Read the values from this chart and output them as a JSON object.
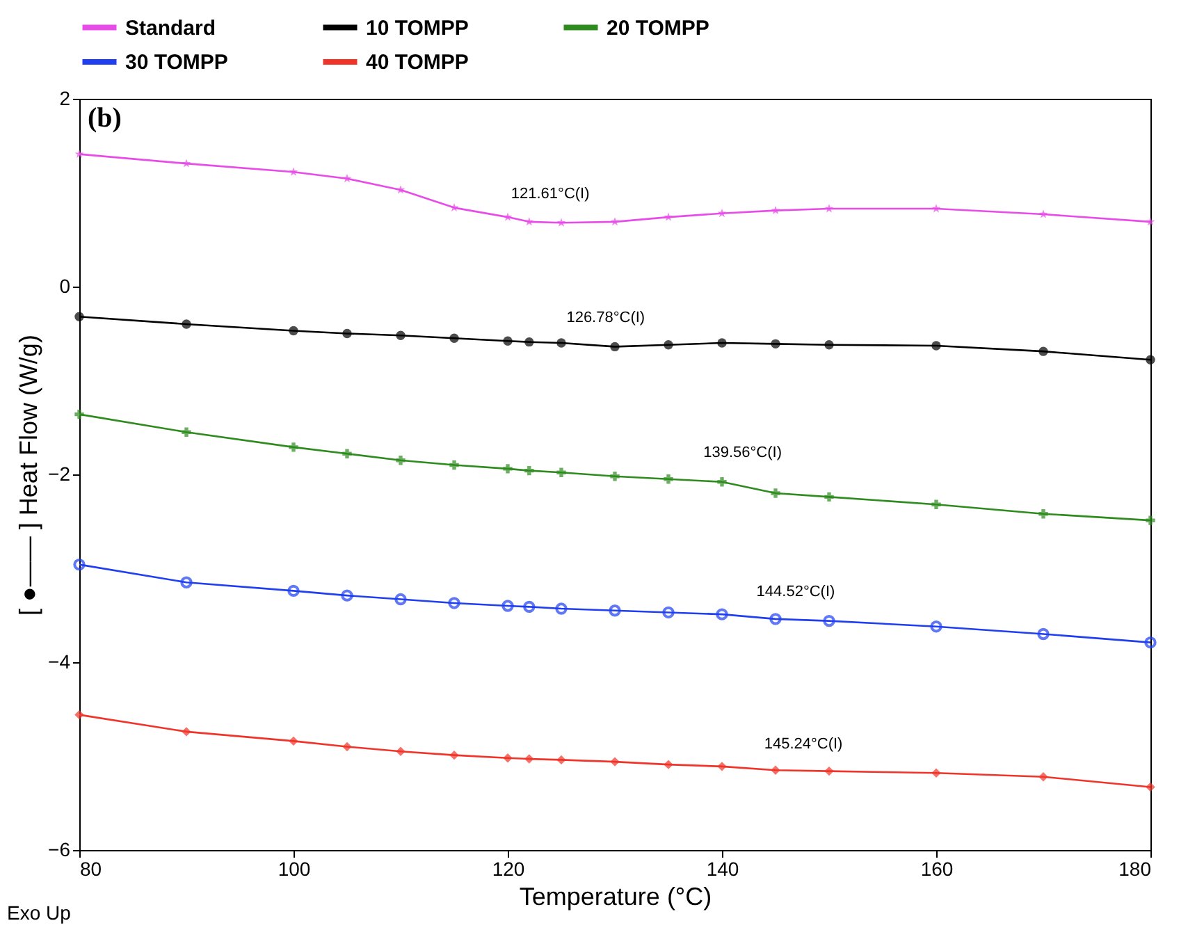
{
  "chart_data": {
    "type": "line",
    "xlabel": "Temperature (°C)",
    "ylabel": "[ ●—— ] Heat Flow (W/g)",
    "xlim": [
      80,
      180
    ],
    "xticks": [
      80,
      100,
      120,
      140,
      160,
      180
    ],
    "ylim": [
      -6,
      2
    ],
    "yticks": [
      -6,
      -4,
      -2,
      0,
      2
    ],
    "legend": "top",
    "grid": false,
    "line_style": "solid",
    "x": [
      80,
      90,
      100,
      105,
      110,
      115,
      120,
      122,
      125,
      130,
      135,
      140,
      145,
      150,
      160,
      170,
      180
    ],
    "series": [
      {
        "name": "Standard",
        "color": "#e84ce8",
        "marker": "star",
        "values": [
          1.41,
          1.31,
          1.22,
          1.15,
          1.03,
          0.84,
          0.74,
          0.69,
          0.68,
          0.69,
          0.74,
          0.78,
          0.81,
          0.83,
          0.83,
          0.77,
          0.69
        ]
      },
      {
        "name": "10 TOMPP",
        "color": "#000000",
        "marker": "circle",
        "values": [
          -0.32,
          -0.4,
          -0.47,
          -0.5,
          -0.52,
          -0.55,
          -0.58,
          -0.59,
          -0.6,
          -0.64,
          -0.62,
          -0.6,
          -0.61,
          -0.62,
          -0.63,
          -0.69,
          -0.78
        ]
      },
      {
        "name": "20 TOMPP",
        "color": "#2e8b1e",
        "marker": "cross",
        "values": [
          -1.36,
          -1.55,
          -1.71,
          -1.78,
          -1.85,
          -1.9,
          -1.94,
          -1.96,
          -1.98,
          -2.02,
          -2.05,
          -2.08,
          -2.2,
          -2.24,
          -2.32,
          -2.42,
          -2.49
        ]
      },
      {
        "name": "30 TOMPP",
        "color": "#1f3ff0",
        "marker": "circle",
        "values": [
          -2.96,
          -3.15,
          -3.24,
          -3.29,
          -3.33,
          -3.37,
          -3.4,
          -3.41,
          -3.43,
          -3.45,
          -3.47,
          -3.49,
          -3.54,
          -3.56,
          -3.62,
          -3.7,
          -3.79
        ]
      },
      {
        "name": "40 TOMPP",
        "color": "#f0342a",
        "marker": "diamond",
        "values": [
          -4.56,
          -4.74,
          -4.84,
          -4.9,
          -4.95,
          -4.99,
          -5.02,
          -5.03,
          -5.04,
          -5.06,
          -5.09,
          -5.11,
          -5.15,
          -5.16,
          -5.18,
          -5.22,
          -5.33
        ]
      }
    ],
    "annotations": [
      {
        "text": "121.61°C(I)",
        "x": 121.61,
        "y": 0.72
      },
      {
        "text": "126.78°C(I)",
        "x": 126.78,
        "y": -0.6
      },
      {
        "text": "139.56°C(I)",
        "x": 139.56,
        "y": -2.04
      },
      {
        "text": "144.52°C(I)",
        "x": 144.52,
        "y": -3.52
      },
      {
        "text": "145.24°C(I)",
        "x": 145.24,
        "y": -5.14
      },
      "(b)",
      "Exo Up"
    ]
  }
}
